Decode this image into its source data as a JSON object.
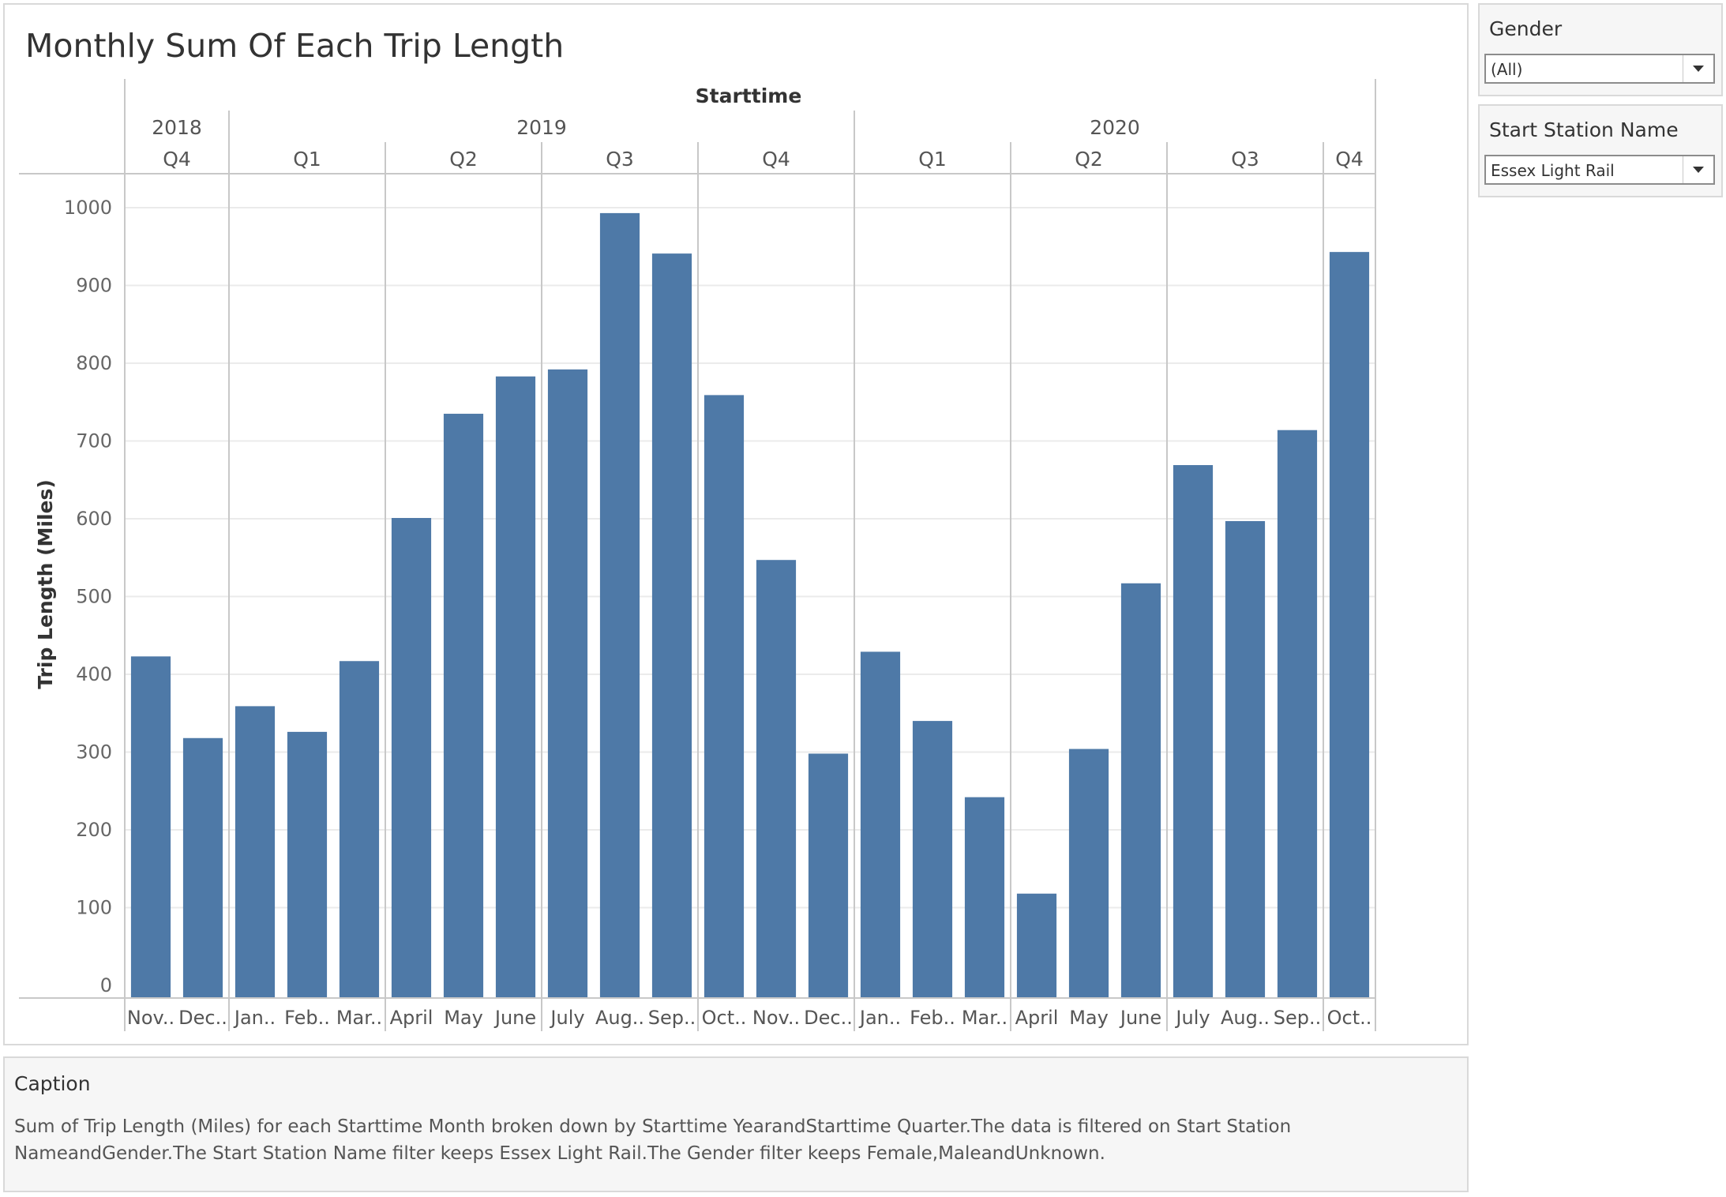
{
  "dashboard": {
    "title": "Monthly Sum Of Each Trip Length"
  },
  "filters": {
    "gender": {
      "title": "Gender",
      "value": "(All)"
    },
    "station": {
      "title": "Start Station Name",
      "value": "Essex Light Rail"
    }
  },
  "caption": {
    "title": "Caption",
    "text": "Sum of Trip Length (Miles) for each Starttime Month broken down by Starttime YearandStarttime Quarter.The data is filtered on Start Station NameandGender.The Start Station Name filter keeps Essex Light Rail.The Gender filter keeps Female,MaleandUnknown."
  },
  "colors": {
    "bar": "#4e79a7",
    "grid": "#ebebeb",
    "divider": "#c8c8c8"
  },
  "chart_data": {
    "type": "bar",
    "title": "Monthly Sum Of Each Trip Length",
    "header_title": "Starttime",
    "ylabel": "Trip Length (Miles)",
    "ylim": [
      0,
      1000
    ],
    "yticks": [
      0,
      100,
      200,
      300,
      400,
      500,
      600,
      700,
      800,
      900,
      1000
    ],
    "grid": true,
    "years": [
      {
        "label": "2018",
        "span": 2
      },
      {
        "label": "2019",
        "span": 12
      },
      {
        "label": "2020",
        "span": 10
      }
    ],
    "quarters": [
      {
        "label": "Q4",
        "span": 2
      },
      {
        "label": "Q1",
        "span": 3
      },
      {
        "label": "Q2",
        "span": 3
      },
      {
        "label": "Q3",
        "span": 3
      },
      {
        "label": "Q4",
        "span": 3
      },
      {
        "label": "Q1",
        "span": 3
      },
      {
        "label": "Q2",
        "span": 3
      },
      {
        "label": "Q3",
        "span": 3
      },
      {
        "label": "Q4",
        "span": 1
      }
    ],
    "categories": [
      "Nov..",
      "Dec..",
      "Jan..",
      "Feb..",
      "Mar..",
      "April",
      "May",
      "June",
      "July",
      "Aug..",
      "Sep..",
      "Oct..",
      "Nov..",
      "Dec..",
      "Jan..",
      "Feb..",
      "Mar..",
      "April",
      "May",
      "June",
      "July",
      "Aug..",
      "Sep..",
      "Oct.."
    ],
    "values": [
      423,
      318,
      359,
      326,
      417,
      601,
      735,
      783,
      792,
      993,
      941,
      759,
      547,
      298,
      429,
      340,
      242,
      118,
      304,
      517,
      669,
      597,
      714,
      943
    ]
  }
}
